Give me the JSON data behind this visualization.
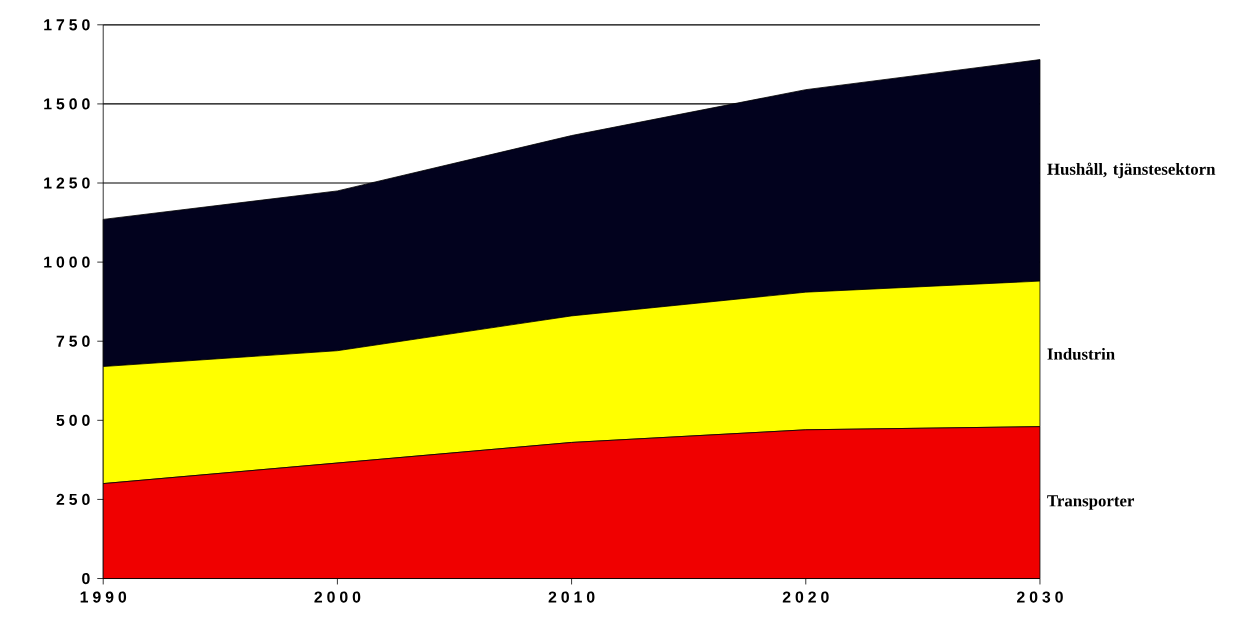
{
  "chart_data": {
    "type": "area",
    "stacked": true,
    "x": [
      1990,
      2000,
      2010,
      2020,
      2030
    ],
    "xlim": [
      1990,
      2030
    ],
    "xticks": [
      1990,
      2000,
      2010,
      2020,
      2030
    ],
    "ylim": [
      0,
      1750
    ],
    "yticks": [
      0,
      250,
      500,
      750,
      1000,
      1250,
      1500,
      1750
    ],
    "grid": "y",
    "series": [
      {
        "name": "Transporter",
        "color": "#f00000",
        "values": [
          300,
          365,
          430,
          470,
          480
        ]
      },
      {
        "name": "Industrin",
        "color": "#ffff00",
        "values": [
          370,
          355,
          400,
          435,
          460
        ]
      },
      {
        "name": "Hushåll, tjänstesektorn",
        "color": "#02021e",
        "values": [
          465,
          505,
          570,
          640,
          700
        ]
      }
    ]
  }
}
